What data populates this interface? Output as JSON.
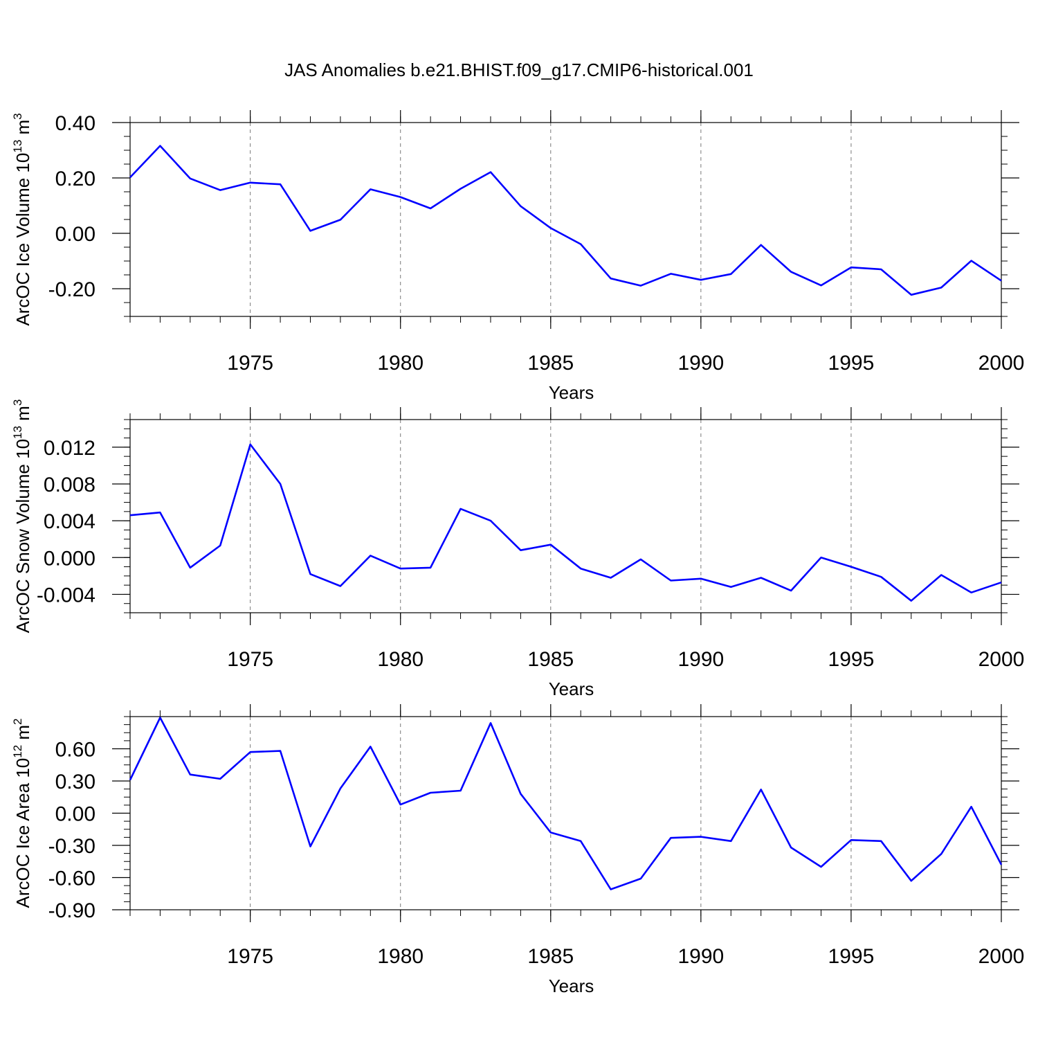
{
  "title": "JAS Anomalies b.e21.BHIST.f09_g17.CMIP6-historical.001",
  "line_color": "#0000ff",
  "chart_data": [
    {
      "type": "line",
      "ylabel": "ArcOC Ice Volume 10",
      "ylabel_exp": "13",
      "ylabel_unit": " m",
      "ylabel_unit_exp": "3",
      "xlabel": "Years",
      "xlim": [
        1971,
        2000
      ],
      "ylim": [
        -0.3,
        0.4
      ],
      "yticks": [
        0.4,
        0.2,
        0.0,
        -0.2
      ],
      "ytick_labels": [
        "0.40",
        "0.20",
        "0.00",
        "-0.20"
      ],
      "xticks": [
        1975,
        1980,
        1985,
        1990,
        1995,
        2000
      ],
      "xtick_labels": [
        "1975",
        "1980",
        "1985",
        "1990",
        "1995",
        "2000"
      ],
      "grid": "vertical dashed at major years",
      "x": [
        1971,
        1972,
        1973,
        1974,
        1975,
        1976,
        1977,
        1978,
        1979,
        1980,
        1981,
        1982,
        1983,
        1984,
        1985,
        1986,
        1987,
        1988,
        1989,
        1990,
        1991,
        1992,
        1993,
        1994,
        1995,
        1996,
        1997,
        1998,
        1999,
        2000
      ],
      "series": [
        {
          "values": [
            0.202,
            0.316,
            0.198,
            0.156,
            0.183,
            0.177,
            0.009,
            0.049,
            0.159,
            0.131,
            0.09,
            0.161,
            0.221,
            0.098,
            0.019,
            -0.039,
            -0.163,
            -0.189,
            -0.146,
            -0.168,
            -0.147,
            -0.042,
            -0.139,
            -0.188,
            -0.123,
            -0.13,
            -0.222,
            -0.196,
            -0.099,
            -0.171
          ]
        }
      ]
    },
    {
      "type": "line",
      "ylabel": "ArcOC Snow Volume 10",
      "ylabel_exp": "13",
      "ylabel_unit": " m",
      "ylabel_unit_exp": "3",
      "xlabel": "Years",
      "xlim": [
        1971,
        2000
      ],
      "ylim": [
        -0.006,
        0.015
      ],
      "yticks": [
        0.012,
        0.008,
        0.004,
        0.0,
        -0.004
      ],
      "ytick_labels": [
        "0.012",
        "0.008",
        "0.004",
        "0.000",
        "-0.004"
      ],
      "xticks": [
        1975,
        1980,
        1985,
        1990,
        1995,
        2000
      ],
      "xtick_labels": [
        "1975",
        "1980",
        "1985",
        "1990",
        "1995",
        "2000"
      ],
      "grid": "vertical dashed at major years",
      "x": [
        1971,
        1972,
        1973,
        1974,
        1975,
        1976,
        1977,
        1978,
        1979,
        1980,
        1981,
        1982,
        1983,
        1984,
        1985,
        1986,
        1987,
        1988,
        1989,
        1990,
        1991,
        1992,
        1993,
        1994,
        1995,
        1996,
        1997,
        1998,
        1999,
        2000
      ],
      "series": [
        {
          "values": [
            0.0046,
            0.0049,
            -0.0011,
            0.0013,
            0.0123,
            0.008,
            -0.0018,
            -0.0031,
            0.0002,
            -0.0012,
            -0.0011,
            0.0053,
            0.004,
            0.0008,
            0.0014,
            -0.0012,
            -0.0022,
            -0.0002,
            -0.0025,
            -0.0023,
            -0.0032,
            -0.0022,
            -0.0036,
            0.0,
            -0.001,
            -0.0021,
            -0.0047,
            -0.0019,
            -0.0038,
            -0.0027
          ]
        }
      ]
    },
    {
      "type": "line",
      "ylabel": "ArcOC Ice Area 10",
      "ylabel_exp": "12",
      "ylabel_unit": " m",
      "ylabel_unit_exp": "2",
      "xlabel": "Years",
      "xlim": [
        1971,
        2000
      ],
      "ylim": [
        -0.9,
        0.9
      ],
      "yticks": [
        0.6,
        0.3,
        0.0,
        -0.3,
        -0.6,
        -0.9
      ],
      "ytick_labels": [
        "0.60",
        "0.30",
        "0.00",
        "-0.30",
        "-0.60",
        "-0.90"
      ],
      "xticks": [
        1975,
        1980,
        1985,
        1990,
        1995,
        2000
      ],
      "xtick_labels": [
        "1975",
        "1980",
        "1985",
        "1990",
        "1995",
        "2000"
      ],
      "grid": "vertical dashed at major years",
      "x": [
        1971,
        1972,
        1973,
        1974,
        1975,
        1976,
        1977,
        1978,
        1979,
        1980,
        1981,
        1982,
        1983,
        1984,
        1985,
        1986,
        1987,
        1988,
        1989,
        1990,
        1991,
        1992,
        1993,
        1994,
        1995,
        1996,
        1997,
        1998,
        1999,
        2000
      ],
      "series": [
        {
          "values": [
            0.31,
            0.89,
            0.36,
            0.32,
            0.57,
            0.58,
            -0.31,
            0.23,
            0.62,
            0.08,
            0.19,
            0.21,
            0.84,
            0.18,
            -0.18,
            -0.26,
            -0.71,
            -0.61,
            -0.23,
            -0.22,
            -0.26,
            0.22,
            -0.32,
            -0.5,
            -0.25,
            -0.26,
            -0.63,
            -0.38,
            0.06,
            -0.48
          ]
        }
      ]
    }
  ]
}
